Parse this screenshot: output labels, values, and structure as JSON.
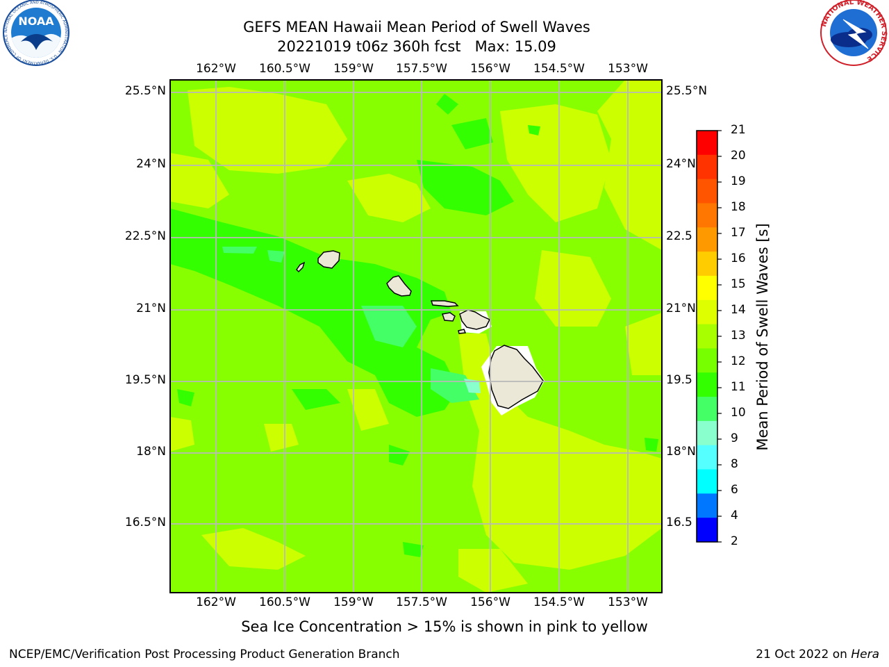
{
  "header": {
    "title_line1": "GEFS MEAN Hawaii Mean Period of Swell Waves",
    "title_line2": "20221019 t06z 360h fcst   Max: 15.09"
  },
  "logos": {
    "left": {
      "name": "noaa-logo",
      "text": "NOAA",
      "ring_text": "NATIONAL OCEANIC AND ATMOSPHERIC ADMINISTRATION · U.S. DEPARTMENT OF COMMERCE"
    },
    "right": {
      "name": "nws-logo",
      "ring_text": "NATIONAL WEATHER SERVICE"
    }
  },
  "map": {
    "lon_ticks": [
      "162°W",
      "160.5°W",
      "159°W",
      "157.5°W",
      "156°W",
      "154.5°W",
      "153°W"
    ],
    "lat_ticks": [
      "25.5°N",
      "24°N",
      "22.5°N",
      "21°N",
      "19.5°N",
      "18°N",
      "16.5°N"
    ],
    "lat_ticks_right_cropped": [
      "25.5°N",
      "24°N",
      "22.5",
      "21°N",
      "19.5",
      "18°N",
      "16.5"
    ],
    "background_field_color": "#88ff00",
    "land_color": "#ece8d8",
    "grid_color": "#b8b8b8"
  },
  "colorbar": {
    "label": "Mean Period of Swell Waves [s]",
    "ticks": [
      "21",
      "20",
      "19",
      "18",
      "17",
      "16",
      "15",
      "14",
      "13",
      "12",
      "11",
      "10",
      "9",
      "8",
      "6",
      "4",
      "2"
    ],
    "colors_top_to_bottom": [
      "#ff0000",
      "#ff3300",
      "#ff5500",
      "#ff7700",
      "#ff9900",
      "#ffcc00",
      "#ffff00",
      "#ddff00",
      "#a8ff00",
      "#77ff00",
      "#33ff00",
      "#44ff66",
      "#88ffcc",
      "#55ffff",
      "#00ffff",
      "#0077ff",
      "#0000ff"
    ]
  },
  "caption": "Sea Ice Concentration > 15% is shown in pink to yellow",
  "footer": {
    "left": "NCEP/EMC/Verification Post Processing Product Generation Branch",
    "right_date": "21 Oct 2022 on ",
    "right_host": "Hera"
  }
}
